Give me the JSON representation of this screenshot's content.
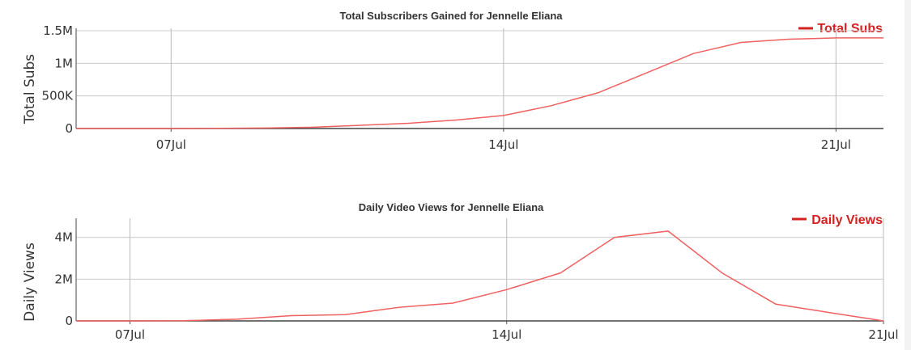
{
  "chart_data": [
    {
      "type": "line",
      "title": "Total Subscribers Gained for Jennelle Eliana",
      "xlabel": "",
      "ylabel": "Total Subs",
      "x": [
        "05Jul",
        "06Jul",
        "07Jul",
        "08Jul",
        "09Jul",
        "10Jul",
        "11Jul",
        "12Jul",
        "13Jul",
        "14Jul",
        "15Jul",
        "16Jul",
        "17Jul",
        "18Jul",
        "19Jul",
        "20Jul",
        "21Jul",
        "22Jul"
      ],
      "series": [
        {
          "name": "Total Subs",
          "color": "#f06060",
          "values": [
            0,
            0,
            0,
            2000,
            8000,
            20000,
            50000,
            80000,
            130000,
            200000,
            350000,
            550000,
            850000,
            1150000,
            1320000,
            1370000,
            1390000,
            1390000
          ]
        }
      ],
      "ylim": [
        0,
        1500000
      ],
      "yticks": [
        0,
        500000,
        1000000,
        1500000
      ],
      "ytick_labels": [
        "0",
        "500K",
        "1M",
        "1.5M"
      ],
      "xtick_labels": [
        "07Jul",
        "14Jul",
        "21Jul"
      ],
      "grid": true,
      "legend": "top-right",
      "legend_color": "#d62020"
    },
    {
      "type": "line",
      "title": "Daily Video Views for Jennelle Eliana",
      "xlabel": "",
      "ylabel": "Daily Views",
      "x": [
        "06Jul",
        "07Jul",
        "08Jul",
        "09Jul",
        "10Jul",
        "11Jul",
        "12Jul",
        "13Jul",
        "14Jul",
        "15Jul",
        "16Jul",
        "17Jul",
        "18Jul",
        "19Jul",
        "20Jul",
        "21Jul"
      ],
      "series": [
        {
          "name": "Daily Views",
          "color": "#f06060",
          "values": [
            0,
            0,
            10000,
            80000,
            250000,
            300000,
            650000,
            850000,
            1500000,
            2300000,
            4000000,
            4300000,
            2300000,
            800000,
            400000,
            0
          ]
        }
      ],
      "ylim": [
        0,
        4800000
      ],
      "yticks": [
        0,
        2000000,
        4000000
      ],
      "ytick_labels": [
        "0",
        "2M",
        "4M"
      ],
      "xtick_labels": [
        "07Jul",
        "14Jul",
        "21Jul"
      ],
      "grid": true,
      "legend": "top-right",
      "legend_color": "#d62020"
    }
  ]
}
